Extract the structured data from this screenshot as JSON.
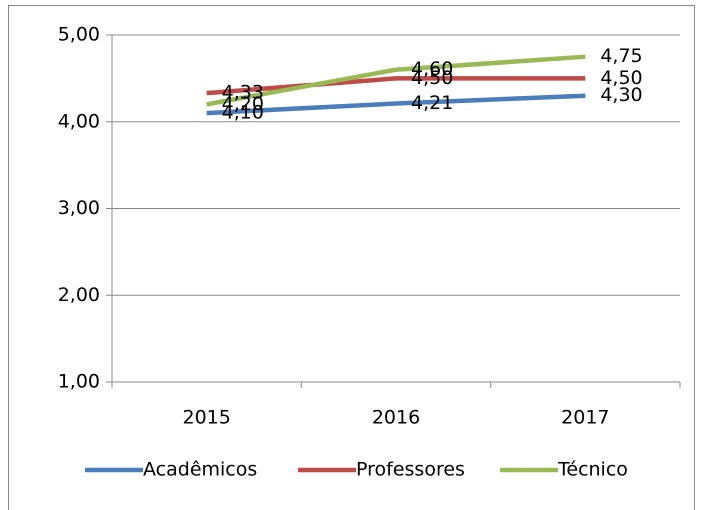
{
  "chart_data": {
    "type": "line",
    "categories": [
      "2015",
      "2016",
      "2017"
    ],
    "series": [
      {
        "name": "Acadêmicos",
        "color": "#4a7ebb",
        "values": [
          4.1,
          4.21,
          4.3
        ],
        "value_labels": [
          "4,10",
          "4,21",
          "4,30"
        ]
      },
      {
        "name": "Professores",
        "color": "#be4b48",
        "values": [
          4.33,
          4.5,
          4.5
        ],
        "value_labels": [
          "4,33",
          "4,50",
          "4,50"
        ]
      },
      {
        "name": "Técnico",
        "color": "#98b954",
        "values": [
          4.2,
          4.6,
          4.75
        ],
        "value_labels": [
          "4,20",
          "4,60",
          "4,75"
        ]
      }
    ],
    "ylim": [
      1,
      5
    ],
    "yticks": [
      {
        "value": 1,
        "label": "1,00"
      },
      {
        "value": 2,
        "label": "2,00"
      },
      {
        "value": 3,
        "label": "3,00"
      },
      {
        "value": 4,
        "label": "4,00"
      },
      {
        "value": 5,
        "label": "5,00"
      }
    ],
    "grid": true,
    "legend": "bottom"
  }
}
